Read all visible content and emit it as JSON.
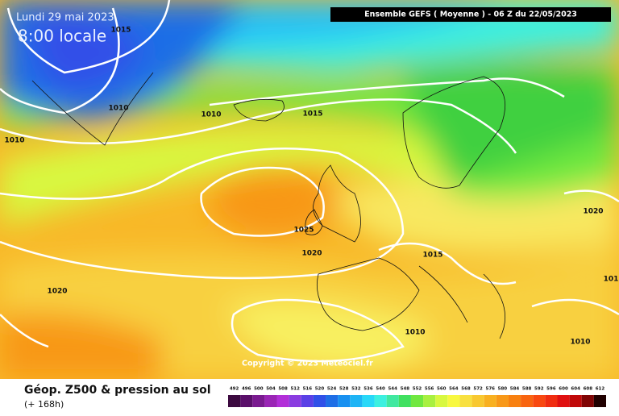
{
  "map": {
    "date": "Lundi 29 mai 2023",
    "time": "8:00 locale",
    "header": "Ensemble GEFS  ( Moyenne )  -  06 Z du 22/05/2023",
    "copyright": "Copyright © 2023 Meteociel.fr",
    "isobar_labels": [
      "1015",
      "1010",
      "1010",
      "1015",
      "1010",
      "1020",
      "1025",
      "1020",
      "1015",
      "1020",
      "1010",
      "1010",
      "101"
    ],
    "footer": {
      "title": "Géop. Z500 & pression au sol",
      "subtitle": "(+ 168h)"
    },
    "legend": {
      "levels": [
        492,
        496,
        500,
        504,
        508,
        512,
        516,
        520,
        524,
        528,
        532,
        536,
        540,
        544,
        548,
        552,
        556,
        560,
        564,
        568,
        572,
        576,
        580,
        584,
        588,
        592,
        596,
        600,
        604,
        608,
        612
      ],
      "colors": [
        "#3c0a40",
        "#5a0f6a",
        "#7a1a90",
        "#9a25b5",
        "#b22fd8",
        "#8a3ce0",
        "#5a40e6",
        "#3050e8",
        "#1e6ee6",
        "#1890f0",
        "#1eb4f5",
        "#28d8f8",
        "#3cf0e0",
        "#40e8a0",
        "#40e060",
        "#70e840",
        "#a8f040",
        "#d8f840",
        "#f8f840",
        "#f8e040",
        "#f8c830",
        "#f8b020",
        "#f89818",
        "#f88010",
        "#f86410",
        "#f84810",
        "#f02c10",
        "#e01010",
        "#c00808",
        "#800404",
        "#200000"
      ]
    }
  }
}
